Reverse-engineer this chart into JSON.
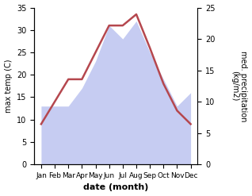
{
  "months": [
    "Jan",
    "Feb",
    "Mar",
    "Apr",
    "May",
    "Jun",
    "Jul",
    "Aug",
    "Sep",
    "Oct",
    "Nov",
    "Dec"
  ],
  "x": [
    1,
    2,
    3,
    4,
    5,
    6,
    7,
    8,
    9,
    10,
    11,
    12
  ],
  "temperature": [
    9,
    14,
    19,
    19,
    25,
    31,
    31,
    33.5,
    26,
    18,
    12,
    9
  ],
  "precipitation": [
    13,
    13,
    13,
    17,
    23,
    31,
    28,
    32,
    25,
    19,
    13,
    16
  ],
  "temp_ylim": [
    0,
    35
  ],
  "precip_ylim": [
    0,
    35
  ],
  "right_ylim": [
    0,
    25
  ],
  "temp_yticks": [
    0,
    5,
    10,
    15,
    20,
    25,
    30,
    35
  ],
  "right_yticks": [
    0,
    5,
    10,
    15,
    20,
    25
  ],
  "temp_color": "#b5474e",
  "precip_fill_color": "#b3bcee",
  "precip_fill_alpha": 0.75,
  "xlabel": "date (month)",
  "ylabel_left": "max temp (C)",
  "ylabel_right": "med. precipitation\n(kg/m2)",
  "bg_color": "#ffffff",
  "xlim_left": 0.5,
  "xlim_right": 12.5
}
